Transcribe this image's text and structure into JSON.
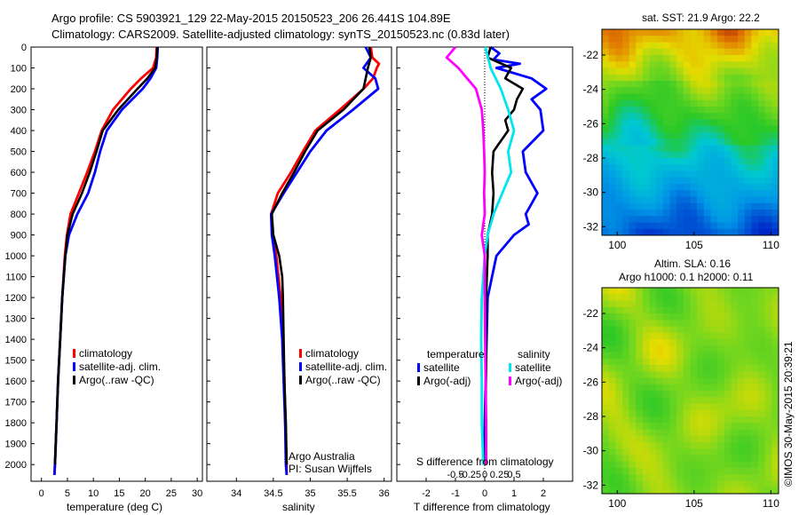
{
  "header": {
    "line1": "Argo profile: CS 5903921_129 22-May-2015 20150523_206 26.441S 104.89E",
    "line2": "Climatology: CARS2009. Satellite-adjusted climatology: synTS_20150523.nc (0.83d later)"
  },
  "colors": {
    "climatology": "#ff0000",
    "satellite": "#0000ff",
    "argo": "#000000",
    "sal_satellite": "#00e5ee",
    "sal_argo": "#ff00ff"
  },
  "chart_data": [
    {
      "type": "line",
      "panel": "temperature",
      "xlabel": "temperature (deg C)",
      "xlim": [
        -2,
        31
      ],
      "xticks": [
        0,
        5,
        10,
        15,
        20,
        25,
        30
      ],
      "ylim": [
        0,
        2080
      ],
      "yticks": [
        0,
        100,
        200,
        300,
        400,
        500,
        600,
        700,
        800,
        900,
        1000,
        1100,
        1200,
        1300,
        1400,
        1500,
        1600,
        1700,
        1800,
        1900,
        2000
      ],
      "y_reversed": true,
      "legend": [
        "climatology",
        "satellite-adj. clim.",
        "Argo(..raw -QC)"
      ],
      "series": [
        {
          "name": "climatology",
          "color": "#ff0000",
          "depth": [
            0,
            50,
            100,
            150,
            200,
            300,
            400,
            500,
            600,
            700,
            800,
            900,
            1000,
            1200,
            1400,
            1600,
            1800,
            2000,
            2050
          ],
          "values": [
            22.2,
            22.1,
            21.5,
            19.2,
            17.2,
            13.8,
            11.6,
            10.3,
            8.8,
            7.2,
            5.6,
            4.9,
            4.5,
            4.0,
            3.6,
            3.2,
            2.9,
            2.6,
            2.5
          ]
        },
        {
          "name": "satellite-adj. clim.",
          "color": "#0000ff",
          "depth": [
            0,
            50,
            100,
            150,
            200,
            300,
            400,
            500,
            600,
            700,
            800,
            900,
            1000,
            1200,
            1400,
            1600,
            1800,
            2000,
            2050
          ],
          "values": [
            22.4,
            22.3,
            22.1,
            21.0,
            19.5,
            15.5,
            12.6,
            11.3,
            10.3,
            9.0,
            6.9,
            5.3,
            4.6,
            4.0,
            3.6,
            3.2,
            2.9,
            2.6,
            2.5
          ]
        },
        {
          "name": "Argo(..raw -QC)",
          "color": "#000000",
          "depth": [
            0,
            50,
            100,
            150,
            200,
            300,
            400,
            500,
            600,
            700,
            800,
            900,
            1000,
            1200,
            1400,
            1600,
            1800,
            2000
          ],
          "values": [
            22.3,
            22.2,
            21.9,
            20.4,
            18.5,
            14.8,
            11.8,
            10.6,
            9.3,
            7.8,
            6.0,
            5.0,
            4.6,
            4.0,
            3.6,
            3.2,
            2.9,
            2.6
          ]
        }
      ]
    },
    {
      "type": "line",
      "panel": "salinity",
      "xlabel": "salinity",
      "xlim": [
        33.6,
        36.1
      ],
      "xticks": [
        34,
        34.5,
        35,
        35.5,
        36
      ],
      "ylim": [
        0,
        2080
      ],
      "y_reversed": true,
      "legend": [
        "climatology",
        "satellite-adj. clim.",
        "Argo(..raw -QC)"
      ],
      "annotation": [
        "Argo Australia",
        "PI: Susan Wijffels"
      ],
      "series": [
        {
          "name": "climatology",
          "color": "#ff0000",
          "depth": [
            0,
            50,
            80,
            100,
            150,
            200,
            300,
            400,
            500,
            600,
            700,
            800,
            900,
            1000,
            1200,
            1400,
            1600,
            1800,
            2000,
            2050
          ],
          "values": [
            35.82,
            35.84,
            35.93,
            35.9,
            35.85,
            35.72,
            35.4,
            35.07,
            34.9,
            34.74,
            34.56,
            34.47,
            34.49,
            34.54,
            34.6,
            34.63,
            34.65,
            34.66,
            34.68,
            34.68
          ]
        },
        {
          "name": "satellite-adj. clim.",
          "color": "#0000ff",
          "depth": [
            0,
            50,
            100,
            150,
            200,
            300,
            400,
            500,
            600,
            700,
            800,
            900,
            1000,
            1200,
            1400,
            1600,
            1800,
            2000,
            2050
          ],
          "values": [
            35.75,
            35.82,
            35.72,
            35.88,
            35.92,
            35.58,
            35.22,
            35.0,
            34.82,
            34.64,
            34.47,
            34.48,
            34.52,
            34.58,
            34.62,
            34.64,
            34.66,
            34.67,
            34.68
          ]
        },
        {
          "name": "Argo(..raw -QC)",
          "color": "#000000",
          "depth": [
            0,
            50,
            100,
            150,
            200,
            300,
            400,
            500,
            600,
            700,
            800,
            900,
            1000,
            1100,
            1200,
            1400,
            1600,
            1800,
            2000
          ],
          "values": [
            35.8,
            35.82,
            35.78,
            35.75,
            35.72,
            35.45,
            35.1,
            34.93,
            34.78,
            34.62,
            34.48,
            34.5,
            34.58,
            34.62,
            34.63,
            34.64,
            34.65,
            34.67,
            34.68
          ]
        }
      ]
    },
    {
      "type": "line",
      "panel": "differences",
      "xlabel": "T difference from climatology",
      "xlabel_top": "S difference from climatology",
      "xlim": [
        -3,
        3
      ],
      "xticks_T": [
        -2,
        -1,
        0,
        1,
        2
      ],
      "xticks_S": [
        "-0.5",
        "-0.25",
        "0",
        "0.25",
        "0.5"
      ],
      "ylim": [
        0,
        2080
      ],
      "y_reversed": true,
      "legend": {
        "temperature_title": "temperature",
        "salinity_title": "salinity",
        "entries": [
          "satellite",
          "Argo(-adj)",
          "satellite",
          "Argo(-adj)"
        ]
      },
      "series": [
        {
          "name": "satellite",
          "group": "temperature",
          "color": "#0000ff",
          "depth": [
            0,
            30,
            60,
            80,
            100,
            150,
            200,
            250,
            300,
            400,
            500,
            600,
            700,
            800,
            850,
            900,
            1000,
            1200,
            1500,
            1800,
            2000
          ],
          "values": [
            0.2,
            0.5,
            0.3,
            1.2,
            0.4,
            1.6,
            2.1,
            1.6,
            1.9,
            2.0,
            1.3,
            1.4,
            1.8,
            1.4,
            1.5,
            1.0,
            0.4,
            0.1,
            0.05,
            0.0,
            0.0
          ]
        },
        {
          "name": "Argo(-adj)",
          "group": "temperature",
          "color": "#000000",
          "depth": [
            0,
            50,
            100,
            150,
            200,
            250,
            300,
            350,
            400,
            500,
            600,
            700,
            800,
            900,
            1000,
            1200,
            1500,
            1800,
            2000
          ],
          "values": [
            0.2,
            0.1,
            0.9,
            0.7,
            1.3,
            1.1,
            1.0,
            0.7,
            0.8,
            0.3,
            0.25,
            0.3,
            0.25,
            0.1,
            0.1,
            0.05,
            0.05,
            0.03,
            0.03
          ]
        },
        {
          "name": "satellite",
          "group": "salinity",
          "color": "#00e5ee",
          "depth": [
            0,
            100,
            200,
            300,
            400,
            500,
            600,
            700,
            800,
            900,
            1000,
            1200,
            1400,
            1600,
            1800,
            2000
          ],
          "values": [
            0.02,
            0.2,
            0.55,
            0.8,
            1.0,
            0.8,
            0.9,
            0.6,
            0.3,
            0.1,
            0.0,
            -0.1,
            -0.12,
            -0.1,
            -0.1,
            -0.05
          ]
        },
        {
          "name": "Argo(-adj)",
          "group": "salinity",
          "color": "#ff00ff",
          "depth": [
            0,
            50,
            100,
            150,
            200,
            250,
            300,
            400,
            500,
            600,
            700,
            800,
            900,
            1000,
            1200,
            1500,
            1800,
            2000
          ],
          "values": [
            -1.0,
            -1.3,
            -0.9,
            -0.6,
            -0.3,
            -0.2,
            -0.1,
            -0.05,
            -0.02,
            0.0,
            -0.02,
            0.0,
            -0.1,
            0.0,
            0.0,
            0.02,
            0.05,
            0.05
          ]
        }
      ]
    },
    {
      "type": "heatmap",
      "panel": "sst_map",
      "title": "sat. SST: 21.9 Argo: 22.2",
      "xticks": [
        100,
        105,
        110
      ],
      "yticks": [
        -22,
        -24,
        -26,
        -28,
        -30,
        -32
      ],
      "xlim": [
        99,
        110.5
      ],
      "ylim": [
        -32.5,
        -20.5
      ]
    },
    {
      "type": "heatmap",
      "panel": "sla_map",
      "title_line1": "Altim. SLA: 0.16",
      "title_line2": "Argo h1000: 0.1 h2000: 0.11",
      "xticks": [
        100,
        105,
        110
      ],
      "yticks": [
        -22,
        -24,
        -26,
        -28,
        -30,
        -32
      ],
      "xlim": [
        99,
        110.5
      ],
      "ylim": [
        -32.5,
        -20.5
      ]
    }
  ],
  "footer": {
    "stamp": "©IMOS 30-May-2015 20:39:21"
  }
}
